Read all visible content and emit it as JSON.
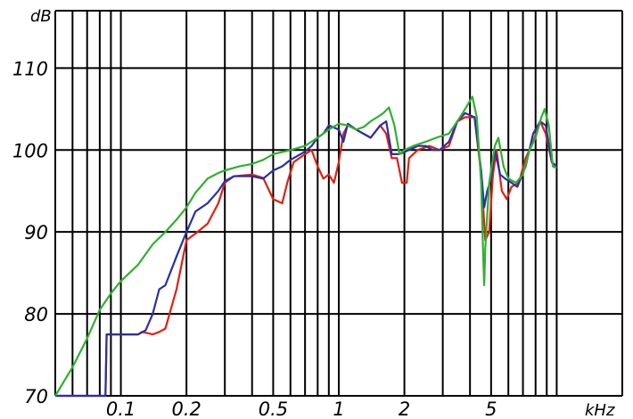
{
  "chart_data": {
    "type": "line",
    "title": "",
    "xlabel": "kHz",
    "ylabel": "dB",
    "x_scale": "log",
    "xlim": [
      0.05,
      20
    ],
    "ylim": [
      70,
      117
    ],
    "x_ticks": [
      0.1,
      0.2,
      0.5,
      1,
      2,
      5
    ],
    "x_tick_labels": [
      "0.1",
      "0.2",
      "0.5",
      "1",
      "2",
      "5"
    ],
    "y_ticks": [
      70,
      80,
      90,
      100,
      110
    ],
    "y_tick_labels": [
      "70",
      "80",
      "90",
      "100",
      "110"
    ],
    "grid": true,
    "legend": "none",
    "series": [
      {
        "color": "#e02010",
        "points": [
          [
            0.05,
            70
          ],
          [
            0.085,
            70
          ],
          [
            0.086,
            77.5
          ],
          [
            0.1,
            77.5
          ],
          [
            0.12,
            77.5
          ],
          [
            0.125,
            77.8
          ],
          [
            0.14,
            77.5
          ],
          [
            0.15,
            77.8
          ],
          [
            0.16,
            78.2
          ],
          [
            0.18,
            83
          ],
          [
            0.2,
            89
          ],
          [
            0.22,
            89.8
          ],
          [
            0.25,
            91
          ],
          [
            0.28,
            93.5
          ],
          [
            0.3,
            96
          ],
          [
            0.33,
            96.8
          ],
          [
            0.4,
            97
          ],
          [
            0.45,
            96.6
          ],
          [
            0.5,
            94
          ],
          [
            0.55,
            93.5
          ],
          [
            0.58,
            96
          ],
          [
            0.62,
            98.5
          ],
          [
            0.7,
            99.5
          ],
          [
            0.75,
            100
          ],
          [
            0.8,
            98
          ],
          [
            0.85,
            96.5
          ],
          [
            0.9,
            97
          ],
          [
            0.95,
            96
          ],
          [
            1,
            98.5
          ],
          [
            1.05,
            102
          ],
          [
            1.1,
            103
          ],
          [
            1.2,
            102.5
          ],
          [
            1.4,
            101.5
          ],
          [
            1.55,
            103
          ],
          [
            1.65,
            102
          ],
          [
            1.75,
            99
          ],
          [
            1.85,
            99
          ],
          [
            1.95,
            96
          ],
          [
            2.05,
            96
          ],
          [
            2.1,
            99
          ],
          [
            2.3,
            100
          ],
          [
            2.6,
            100.5
          ],
          [
            2.9,
            100
          ],
          [
            3.2,
            100.5
          ],
          [
            3.5,
            103.5
          ],
          [
            3.8,
            104
          ],
          [
            4.2,
            104
          ],
          [
            4.5,
            97
          ],
          [
            4.7,
            89
          ],
          [
            4.9,
            90
          ],
          [
            5.1,
            97
          ],
          [
            5.3,
            100
          ],
          [
            5.6,
            95
          ],
          [
            5.9,
            94
          ],
          [
            6.2,
            95.5
          ],
          [
            6.7,
            96
          ],
          [
            7.2,
            99
          ],
          [
            7.8,
            101
          ],
          [
            8.4,
            103.5
          ],
          [
            8.9,
            102
          ],
          [
            9.5,
            98.5
          ],
          [
            10,
            98
          ]
        ]
      },
      {
        "color": "#2830a8",
        "points": [
          [
            0.05,
            70
          ],
          [
            0.085,
            70
          ],
          [
            0.086,
            77.5
          ],
          [
            0.1,
            77.5
          ],
          [
            0.12,
            77.5
          ],
          [
            0.13,
            78
          ],
          [
            0.14,
            80
          ],
          [
            0.15,
            83
          ],
          [
            0.16,
            83.5
          ],
          [
            0.18,
            87
          ],
          [
            0.2,
            90
          ],
          [
            0.22,
            92.5
          ],
          [
            0.25,
            93.5
          ],
          [
            0.28,
            95
          ],
          [
            0.3,
            96.2
          ],
          [
            0.33,
            96.8
          ],
          [
            0.4,
            96.8
          ],
          [
            0.45,
            96.5
          ],
          [
            0.5,
            97.5
          ],
          [
            0.55,
            98
          ],
          [
            0.6,
            98.8
          ],
          [
            0.7,
            99.8
          ],
          [
            0.75,
            100.5
          ],
          [
            0.8,
            101.5
          ],
          [
            0.85,
            102
          ],
          [
            0.9,
            103
          ],
          [
            1,
            102.5
          ],
          [
            1.05,
            101
          ],
          [
            1.1,
            103.2
          ],
          [
            1.2,
            102.5
          ],
          [
            1.4,
            101.5
          ],
          [
            1.55,
            103
          ],
          [
            1.65,
            103.5
          ],
          [
            1.75,
            99.5
          ],
          [
            1.9,
            99.5
          ],
          [
            2.1,
            100
          ],
          [
            2.3,
            100.5
          ],
          [
            2.5,
            100.5
          ],
          [
            2.7,
            100
          ],
          [
            2.9,
            100
          ],
          [
            3.2,
            101
          ],
          [
            3.5,
            103.5
          ],
          [
            3.8,
            104.5
          ],
          [
            4.2,
            104
          ],
          [
            4.5,
            97.5
          ],
          [
            4.65,
            93
          ],
          [
            4.8,
            95
          ],
          [
            5,
            96.5
          ],
          [
            5.2,
            100
          ],
          [
            5.5,
            97
          ],
          [
            5.8,
            96.5
          ],
          [
            6.2,
            96
          ],
          [
            6.6,
            95.5
          ],
          [
            7.2,
            98
          ],
          [
            7.8,
            102
          ],
          [
            8.4,
            103.5
          ],
          [
            8.9,
            103
          ],
          [
            9.5,
            98.5
          ],
          [
            10,
            98
          ]
        ]
      },
      {
        "color": "#30b030",
        "points": [
          [
            0.05,
            70
          ],
          [
            0.06,
            73.5
          ],
          [
            0.07,
            77
          ],
          [
            0.08,
            80.5
          ],
          [
            0.09,
            82.5
          ],
          [
            0.1,
            84
          ],
          [
            0.12,
            86
          ],
          [
            0.14,
            88.5
          ],
          [
            0.16,
            90
          ],
          [
            0.18,
            91.5
          ],
          [
            0.2,
            93
          ],
          [
            0.22,
            94.8
          ],
          [
            0.25,
            96.5
          ],
          [
            0.28,
            97.2
          ],
          [
            0.3,
            97.5
          ],
          [
            0.35,
            98
          ],
          [
            0.4,
            98.3
          ],
          [
            0.45,
            98.8
          ],
          [
            0.5,
            99.5
          ],
          [
            0.6,
            100
          ],
          [
            0.7,
            100.5
          ],
          [
            0.8,
            101.5
          ],
          [
            0.9,
            102.5
          ],
          [
            1,
            103.2
          ],
          [
            1.1,
            103
          ],
          [
            1.2,
            102.5
          ],
          [
            1.3,
            102.8
          ],
          [
            1.4,
            103.5
          ],
          [
            1.5,
            104
          ],
          [
            1.6,
            104.5
          ],
          [
            1.7,
            105.2
          ],
          [
            1.8,
            103
          ],
          [
            1.9,
            99.5
          ],
          [
            2,
            100
          ],
          [
            2.2,
            100.5
          ],
          [
            2.5,
            101
          ],
          [
            2.8,
            101.5
          ],
          [
            3.2,
            102
          ],
          [
            3.5,
            103.5
          ],
          [
            3.8,
            105
          ],
          [
            4.1,
            106.5
          ],
          [
            4.3,
            104
          ],
          [
            4.5,
            96
          ],
          [
            4.6,
            87
          ],
          [
            4.65,
            83.5
          ],
          [
            4.7,
            88
          ],
          [
            4.9,
            96
          ],
          [
            5.2,
            100.5
          ],
          [
            5.4,
            101.5
          ],
          [
            5.7,
            98
          ],
          [
            6,
            96.5
          ],
          [
            6.5,
            96
          ],
          [
            7,
            97
          ],
          [
            7.5,
            100
          ],
          [
            8,
            101.5
          ],
          [
            8.5,
            104
          ],
          [
            8.8,
            105
          ],
          [
            9.2,
            103
          ],
          [
            9.6,
            98
          ],
          [
            10,
            97.8
          ]
        ]
      }
    ]
  }
}
